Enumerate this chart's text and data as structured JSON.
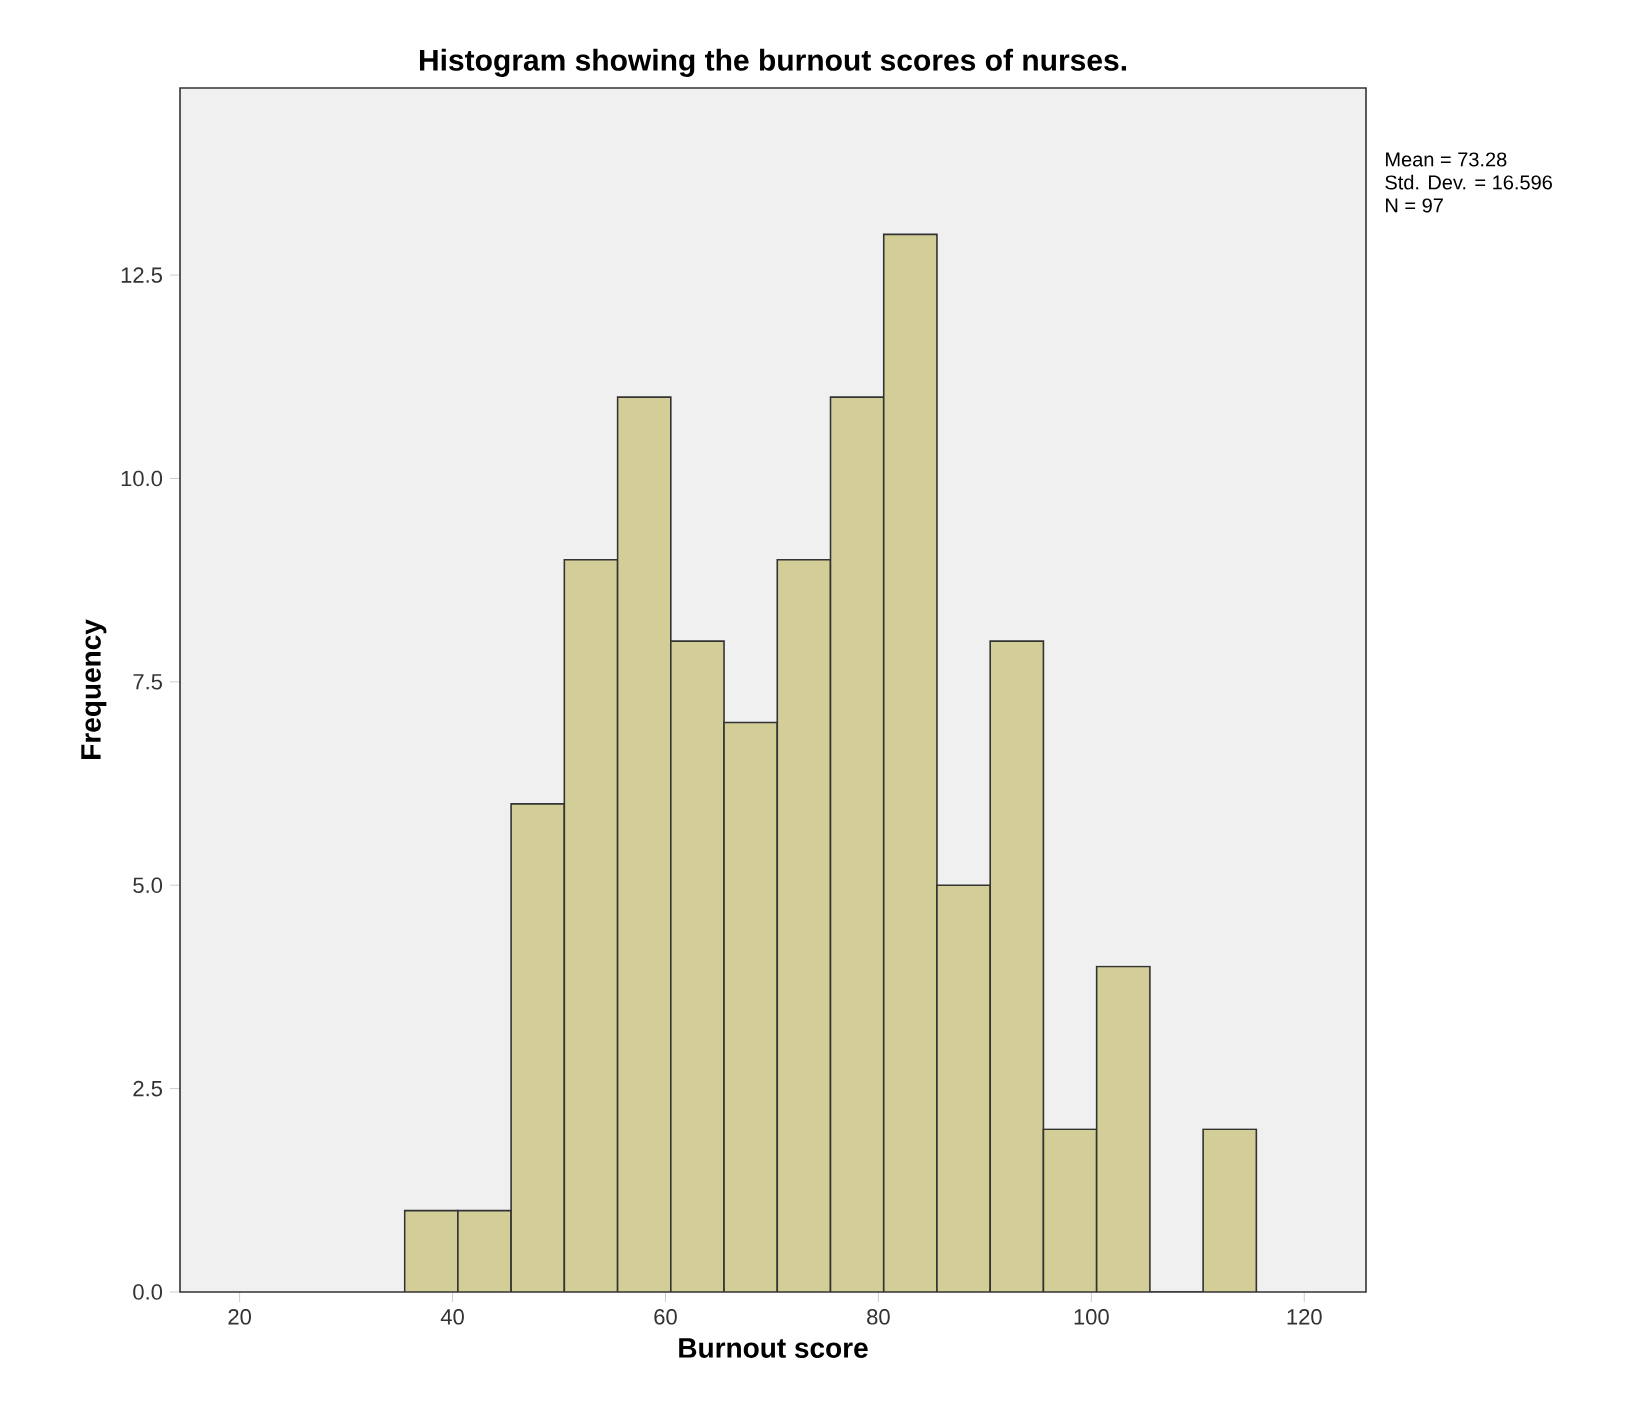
{
  "chart_data": {
    "type": "histogram",
    "title": "Histogram showing the burnout scores of nurses.",
    "xlabel": "Burnout score",
    "ylabel": "Frequency",
    "bins": [
      35.5,
      40.5,
      45.5,
      50.5,
      55.5,
      60.5,
      65.5,
      70.5,
      75.5,
      80.5,
      85.5,
      90.5,
      95.5,
      100.5,
      105.5,
      110.5,
      115.5
    ],
    "values": [
      1,
      1,
      6,
      9,
      11,
      8,
      7,
      9,
      11,
      13,
      5,
      8,
      2,
      4,
      0,
      2
    ],
    "color": "#d3ce97",
    "xlim": [
      14.4,
      125.8
    ],
    "ylim": [
      0,
      14.8
    ],
    "xticks": [
      20,
      40,
      60,
      80,
      100,
      120
    ],
    "yticks": [
      {
        "value": 0,
        "label": "0.0"
      },
      {
        "value": 2.5,
        "label": "2.5"
      },
      {
        "value": 5,
        "label": "5.0"
      },
      {
        "value": 7.5,
        "label": "7.5"
      },
      {
        "value": 10,
        "label": "10.0"
      },
      {
        "value": 12.5,
        "label": "12.5"
      }
    ],
    "annotations": [
      "Mean = 73.28",
      "Std. Dev. = 16.596",
      "N = 97"
    ]
  }
}
